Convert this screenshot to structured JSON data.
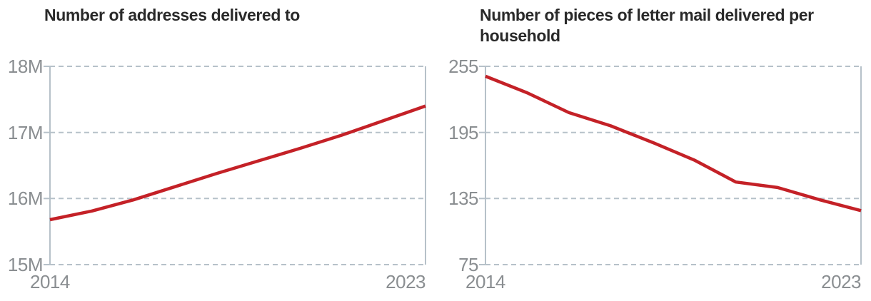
{
  "page": {
    "background": "#ffffff"
  },
  "colors": {
    "line": "#c42127",
    "grid": "#b6c1c9",
    "tick_text": "#8a8e91",
    "title_text": "#292929"
  },
  "chart_data": [
    {
      "type": "line",
      "title": "Number of addresses delivered to",
      "title_lines": [
        "Number of addresses delivered to"
      ],
      "x": [
        2014,
        2015,
        2016,
        2017,
        2018,
        2019,
        2020,
        2021,
        2022,
        2023
      ],
      "series": [
        {
          "name": "Addresses delivered to (millions)",
          "values": [
            15.68,
            15.81,
            15.98,
            16.18,
            16.38,
            16.57,
            16.76,
            16.96,
            17.18,
            17.4
          ]
        }
      ],
      "unit": "millions",
      "ylim": [
        15,
        18
      ],
      "yticks": [
        {
          "label": "18M",
          "value": 18
        },
        {
          "label": "17M",
          "value": 17
        },
        {
          "label": "16M",
          "value": 16
        },
        {
          "label": "15M",
          "value": 15
        }
      ],
      "xtick_labels": [
        "2014",
        "2023"
      ],
      "line_color": "#c42127",
      "grid": "dashed-horizontal",
      "legend": "none"
    },
    {
      "type": "line",
      "title": "Number of pieces of letter mail delivered per household",
      "title_lines": [
        "Number of pieces of letter mail delivered per",
        "household"
      ],
      "x": [
        2014,
        2015,
        2016,
        2017,
        2018,
        2019,
        2020,
        2021,
        2022,
        2023
      ],
      "series": [
        {
          "name": "Pieces of letter mail per household",
          "values": [
            246,
            231,
            213,
            201,
            186,
            170,
            150,
            145,
            134,
            124
          ]
        }
      ],
      "unit": "pieces",
      "ylim": [
        75,
        255
      ],
      "yticks": [
        {
          "label": "255",
          "value": 255
        },
        {
          "label": "195",
          "value": 195
        },
        {
          "label": "135",
          "value": 135
        },
        {
          "label": "75",
          "value": 75
        }
      ],
      "xtick_labels": [
        "2014",
        "2023"
      ],
      "line_color": "#c42127",
      "grid": "dashed-horizontal",
      "legend": "none"
    }
  ]
}
